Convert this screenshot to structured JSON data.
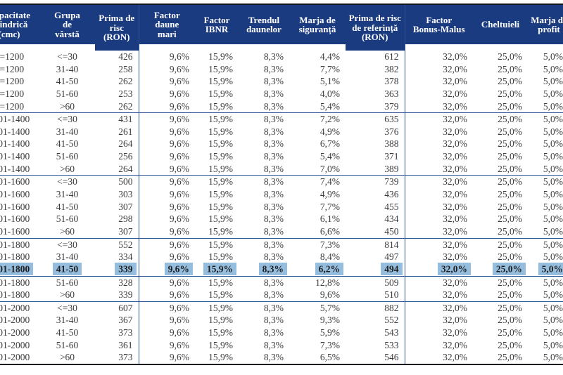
{
  "table": {
    "columns": [
      {
        "id": "capacity",
        "label": "Capacitate cilindrică (cmc)"
      },
      {
        "id": "age_group",
        "label": "Grupa de vârstă"
      },
      {
        "id": "risk_premium_ron",
        "label": "Prima de risc (RON)"
      },
      {
        "id": "large_claims_factor",
        "label": "Factor daune mari"
      },
      {
        "id": "ibnr_factor",
        "label": "Factor IBNR"
      },
      {
        "id": "claims_trend",
        "label": "Trendul daunelor"
      },
      {
        "id": "safety_margin",
        "label": "Marja de siguranță"
      },
      {
        "id": "reference_risk_premium",
        "label": "Prima de risc de referință (RON)"
      },
      {
        "id": "bonus_malus_factor",
        "label": "Factor Bonus-Malus"
      },
      {
        "id": "expenses",
        "label": "Cheltuieli"
      },
      {
        "id": "profit_margin",
        "label": "Marja de profit"
      }
    ],
    "rows": [
      [
        "<=1200",
        "<=30",
        "426",
        "9,6%",
        "15,9%",
        "8,3%",
        "4,4%",
        "612",
        "32,0%",
        "25,0%",
        "5,0%"
      ],
      [
        "<=1200",
        "31-40",
        "258",
        "9,6%",
        "15,9%",
        "8,3%",
        "7,7%",
        "382",
        "32,0%",
        "25,0%",
        "5,0%"
      ],
      [
        "<=1200",
        "41-50",
        "262",
        "9,6%",
        "15,9%",
        "8,3%",
        "5,1%",
        "378",
        "32,0%",
        "25,0%",
        "5,0%"
      ],
      [
        "<=1200",
        "51-60",
        "253",
        "9,6%",
        "15,9%",
        "8,3%",
        "4,0%",
        "363",
        "32,0%",
        "25,0%",
        "5,0%"
      ],
      [
        "<=1200",
        ">60",
        "262",
        "9,6%",
        "15,9%",
        "8,3%",
        "5,4%",
        "379",
        "32,0%",
        "25,0%",
        "5,0%"
      ],
      [
        "1201-1400",
        "<=30",
        "431",
        "9,6%",
        "15,9%",
        "8,3%",
        "7,2%",
        "635",
        "32,0%",
        "25,0%",
        "5,0%"
      ],
      [
        "1201-1400",
        "31-40",
        "261",
        "9,6%",
        "15,9%",
        "8,3%",
        "4,9%",
        "376",
        "32,0%",
        "25,0%",
        "5,0%"
      ],
      [
        "1201-1400",
        "41-50",
        "264",
        "9,6%",
        "15,9%",
        "8,3%",
        "6,7%",
        "388",
        "32,0%",
        "25,0%",
        "5,0%"
      ],
      [
        "1201-1400",
        "51-60",
        "256",
        "9,6%",
        "15,9%",
        "8,3%",
        "5,4%",
        "371",
        "32,0%",
        "25,0%",
        "5,0%"
      ],
      [
        "1201-1400",
        ">60",
        "264",
        "9,6%",
        "15,9%",
        "8,3%",
        "7,0%",
        "389",
        "32,0%",
        "25,0%",
        "5,0%"
      ],
      [
        "1401-1600",
        "<=30",
        "500",
        "9,6%",
        "15,9%",
        "8,3%",
        "7,4%",
        "739",
        "32,0%",
        "25,0%",
        "5,0%"
      ],
      [
        "1401-1600",
        "31-40",
        "303",
        "9,6%",
        "15,9%",
        "8,3%",
        "4,9%",
        "436",
        "32,0%",
        "25,0%",
        "5,0%"
      ],
      [
        "1401-1600",
        "41-50",
        "307",
        "9,6%",
        "15,9%",
        "8,3%",
        "7,7%",
        "455",
        "32,0%",
        "25,0%",
        "5,0%"
      ],
      [
        "1401-1600",
        "51-60",
        "298",
        "9,6%",
        "15,9%",
        "8,3%",
        "6,1%",
        "434",
        "32,0%",
        "25,0%",
        "5,0%"
      ],
      [
        "1401-1600",
        ">60",
        "307",
        "9,6%",
        "15,9%",
        "8,3%",
        "6,6%",
        "450",
        "32,0%",
        "25,0%",
        "5,0%"
      ],
      [
        "1601-1800",
        "<=30",
        "552",
        "9,6%",
        "15,9%",
        "8,3%",
        "7,3%",
        "814",
        "32,0%",
        "25,0%",
        "5,0%"
      ],
      [
        "1601-1800",
        "31-40",
        "334",
        "9,6%",
        "15,9%",
        "8,3%",
        "8,4%",
        "497",
        "32,0%",
        "25,0%",
        "5,0%"
      ],
      [
        "1601-1800",
        "41-50",
        "339",
        "9,6%",
        "15,9%",
        "8,3%",
        "6,2%",
        "494",
        "32,0%",
        "25,0%",
        "5,0%"
      ],
      [
        "1601-1800",
        "51-60",
        "328",
        "9,6%",
        "15,9%",
        "8,3%",
        "12,8%",
        "509",
        "32,0%",
        "25,0%",
        "5,0%"
      ],
      [
        "1601-1800",
        ">60",
        "339",
        "9,6%",
        "15,9%",
        "8,3%",
        "9,6%",
        "510",
        "32,0%",
        "25,0%",
        "5,0%"
      ],
      [
        "1801-2000",
        "<=30",
        "607",
        "9,6%",
        "15,9%",
        "8,3%",
        "5,7%",
        "882",
        "32,0%",
        "25,0%",
        "5,0%"
      ],
      [
        "1801-2000",
        "31-40",
        "367",
        "9,6%",
        "15,9%",
        "8,3%",
        "9,3%",
        "552",
        "32,0%",
        "25,0%",
        "5,0%"
      ],
      [
        "1801-2000",
        "41-50",
        "373",
        "9,6%",
        "15,9%",
        "8,3%",
        "5,9%",
        "543",
        "32,0%",
        "25,0%",
        "5,0%"
      ],
      [
        "1801-2000",
        "51-60",
        "361",
        "9,6%",
        "15,9%",
        "8,3%",
        "7,3%",
        "533",
        "32,0%",
        "25,0%",
        "5,0%"
      ],
      [
        "1801-2000",
        ">60",
        "373",
        "9,6%",
        "15,9%",
        "8,3%",
        "6,5%",
        "546",
        "32,0%",
        "25,0%",
        "5,0%"
      ]
    ],
    "rows_per_group": 5,
    "highlighted_row_index": 17
  },
  "colors": {
    "header_bg": "#1a3b80",
    "header_text": "#ffffff",
    "highlight_bg": "#95bdde",
    "grid_line_blue": "#2f5496",
    "outer_border": "#15151c",
    "body_text": "#3c3c3c"
  }
}
